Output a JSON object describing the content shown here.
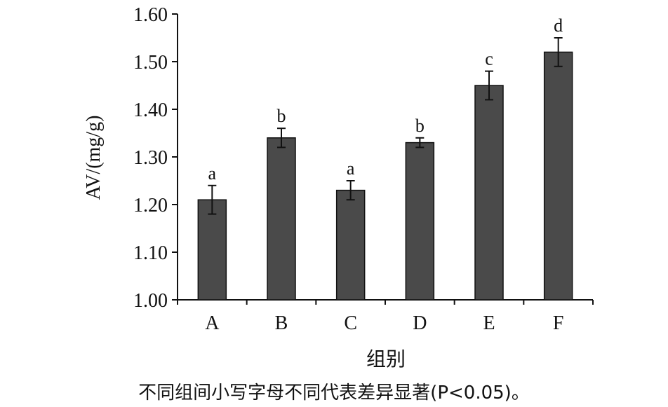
{
  "chart_data": {
    "type": "bar",
    "categories": [
      "A",
      "B",
      "C",
      "D",
      "E",
      "F"
    ],
    "values": [
      1.21,
      1.34,
      1.23,
      1.33,
      1.45,
      1.52
    ],
    "errors": [
      0.03,
      0.02,
      0.02,
      0.01,
      0.03,
      0.03
    ],
    "significance_letters": [
      "a",
      "b",
      "a",
      "b",
      "c",
      "d"
    ],
    "xlabel": "组别",
    "ylabel": "AV/(mg/g)",
    "ylim": [
      1.0,
      1.6
    ],
    "yticks": [
      "1.00",
      "1.10",
      "1.20",
      "1.30",
      "1.40",
      "1.50",
      "1.60"
    ],
    "bar_color": "#4a4a4a",
    "grid": false
  },
  "caption": "不同组间小写字母不同代表差异显著(P<0.05)。"
}
